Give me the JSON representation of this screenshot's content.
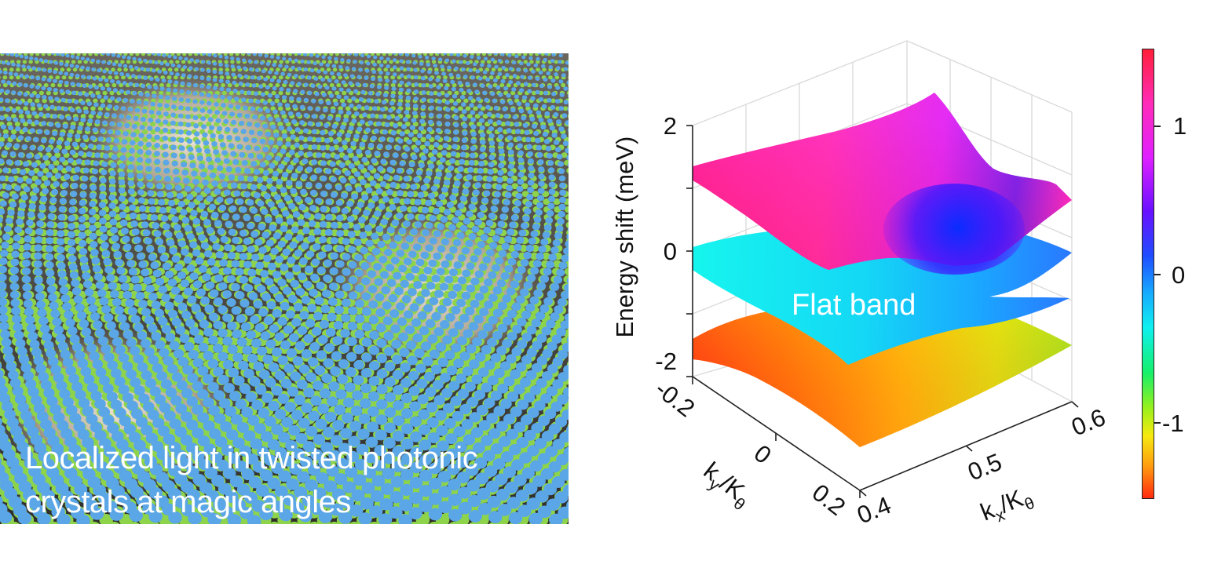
{
  "caption": "Localized light in twisted photonic crystals at magic angles",
  "plot": {
    "flat_band_label": "Flat band",
    "z_axis_label": "Energy shift (meV)",
    "x_axis_label": "k",
    "x_axis_sub_a": "x",
    "x_axis_sub_b": "θ",
    "y_axis_label": "k",
    "y_axis_sub_a": "y",
    "y_axis_sub_b": "θ",
    "axis_denominator": "/K",
    "z_ticks": [
      "2",
      "0",
      "-2"
    ],
    "x_ticks": [
      "0.4",
      "0.5",
      "0.6"
    ],
    "y_ticks": [
      "-0.2",
      "0",
      "0.2"
    ]
  },
  "colorbar": {
    "ticks": [
      "1",
      "0",
      "-1"
    ]
  },
  "colors": {
    "lattice_blue": "#5aa6e6",
    "lattice_green": "#8ed44a",
    "background_dark": "#4a4742"
  }
}
